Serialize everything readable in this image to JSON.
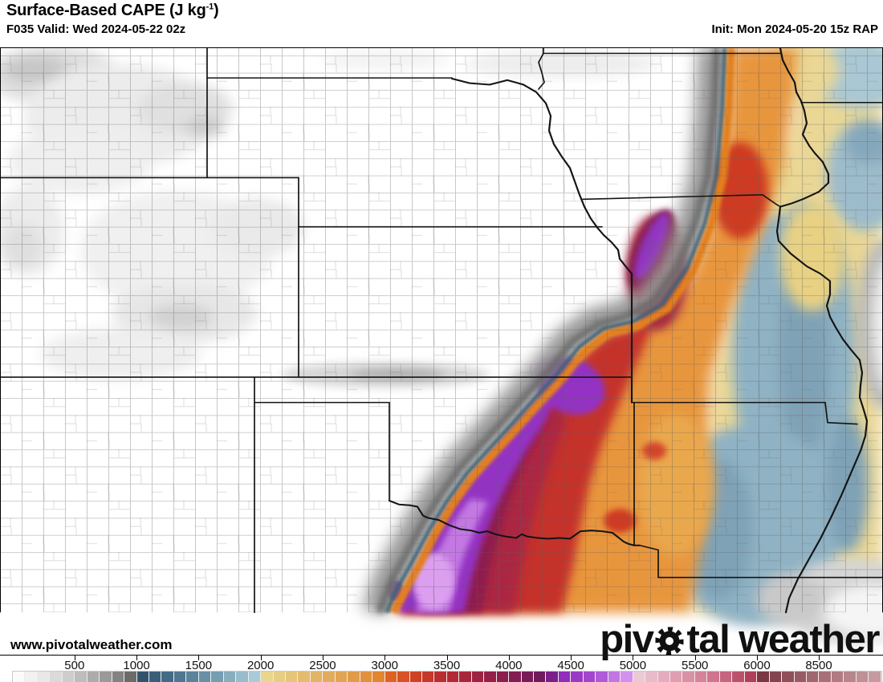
{
  "header": {
    "product_title_prefix": "Surface-Based CAPE (J kg",
    "product_title_sup": "-1",
    "product_title_suffix": ")",
    "valid_line": "F035 Valid: Wed 2024-05-22 02z",
    "init_line": "Init: Mon 2024-05-20 15z RAP"
  },
  "map": {
    "watermark": "www.pivotalweather.com",
    "logo_part1": "piv",
    "logo_part2": "tal weather",
    "region": "Central United States"
  },
  "colorbar": {
    "units": "J kg-1",
    "tick_values": [
      500,
      1000,
      1500,
      2000,
      2500,
      3000,
      3500,
      4000,
      4500,
      5000,
      5500,
      6000,
      8500
    ],
    "cell_step_low": 100,
    "cell_step_high": 500,
    "break_value": 6000,
    "max_value": 11000,
    "stops": [
      [
        0,
        "#ffffff"
      ],
      [
        250,
        "#e8e8e8"
      ],
      [
        500,
        "#c6c6c6"
      ],
      [
        750,
        "#9a9a9a"
      ],
      [
        950,
        "#6b6b6b"
      ],
      [
        1000,
        "#2f4d66"
      ],
      [
        1300,
        "#47708c"
      ],
      [
        1600,
        "#6e96ac"
      ],
      [
        1950,
        "#a9cbd8"
      ],
      [
        2050,
        "#e9d68e"
      ],
      [
        2400,
        "#e3b868"
      ],
      [
        2700,
        "#e1a04f"
      ],
      [
        2950,
        "#e2862f"
      ],
      [
        3050,
        "#de6323"
      ],
      [
        3250,
        "#cf4124"
      ],
      [
        3450,
        "#bb2e30"
      ],
      [
        3700,
        "#a3243e"
      ],
      [
        3950,
        "#8a1e4e"
      ],
      [
        4250,
        "#701a5e"
      ],
      [
        4350,
        "#7c1f8a"
      ],
      [
        4400,
        "#8b26b6"
      ],
      [
        4700,
        "#a74ed2"
      ],
      [
        4950,
        "#d391ee"
      ],
      [
        5050,
        "#eccad4"
      ],
      [
        5400,
        "#dc98ac"
      ],
      [
        5700,
        "#cb6e8a"
      ],
      [
        5950,
        "#b04058"
      ],
      [
        6050,
        "#743240"
      ],
      [
        7000,
        "#8a4a55"
      ],
      [
        8500,
        "#a56b74"
      ],
      [
        11000,
        "#c9a0a6"
      ]
    ],
    "key_colors": {
      "low_gray_ramp": "#9a9a9a",
      "blue_1000_2000": "#5d89a4",
      "khaki_2000": "#e9d68e",
      "orange_3000": "#e2862f",
      "red_3300": "#c5312a",
      "maroon_4000": "#8a1e4e",
      "purple_4500": "#9330c4",
      "lavender_5000": "#dc9ff0",
      "pink_5500": "#dc98ac",
      "dark_maroon_6000": "#743240"
    }
  }
}
